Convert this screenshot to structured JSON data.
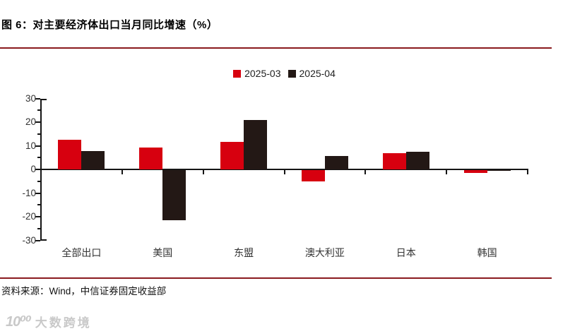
{
  "title": "图 6：对主要经济体出口当月同比增速（%）",
  "source": "资料来源：Wind，中信证券固定收益部",
  "watermark": {
    "logo": "10⁰⁰",
    "text": "大数跨境"
  },
  "colors": {
    "series_2025_03": "#d7000f",
    "series_2025_04": "#231815",
    "divider": "#8a1a1e",
    "axis": "#151515",
    "tick_label": "#333333",
    "watermark": "#c9c9c9"
  },
  "chart_data": {
    "type": "bar",
    "title": "对主要经济体出口当月同比增速（%）",
    "categories": [
      "全部出口",
      "美国",
      "东盟",
      "澳大利亚",
      "日本",
      "韩国"
    ],
    "series": [
      {
        "name": "2025-03",
        "color": "#d7000f",
        "values": [
          12.4,
          9.2,
          11.6,
          -4.9,
          6.8,
          -1.2
        ]
      },
      {
        "name": "2025-04",
        "color": "#231815",
        "values": [
          7.8,
          -21.2,
          20.8,
          5.6,
          7.6,
          -0.3
        ]
      }
    ],
    "xlabel": "",
    "ylabel": "",
    "ylim": [
      -30,
      30
    ],
    "yticks": [
      30,
      20,
      10,
      0,
      -10,
      -20,
      -30
    ],
    "ytick_minor_step": 5,
    "grid": false,
    "legend_position": "top-center"
  }
}
